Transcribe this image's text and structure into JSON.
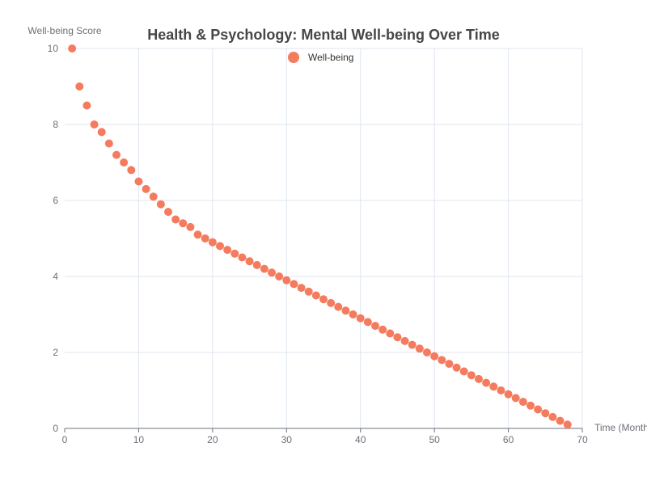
{
  "chart_data": {
    "type": "scatter",
    "title": "Health & Psychology: Mental Well-being Over Time",
    "xlabel": "Time (Months)",
    "ylabel": "Well-being Score",
    "xlim": [
      0,
      70
    ],
    "ylim": [
      0,
      10
    ],
    "x_ticks": [
      "0",
      "10",
      "20",
      "30",
      "40",
      "50",
      "60",
      "70"
    ],
    "y_ticks": [
      "0",
      "2",
      "4",
      "6",
      "8",
      "10"
    ],
    "grid": true,
    "legend_position": "top-center",
    "series": [
      {
        "name": "Well-being",
        "color": "#f47b5e",
        "x": [
          1,
          2,
          3,
          4,
          5,
          6,
          7,
          8,
          9,
          10,
          11,
          12,
          13,
          14,
          15,
          16,
          17,
          18,
          19,
          20,
          21,
          22,
          23,
          24,
          25,
          26,
          27,
          28,
          29,
          30,
          31,
          32,
          33,
          34,
          35,
          36,
          37,
          38,
          39,
          40,
          41,
          42,
          43,
          44,
          45,
          46,
          47,
          48,
          49,
          50,
          51,
          52,
          53,
          54,
          55,
          56,
          57,
          58,
          59,
          60,
          61,
          62,
          63,
          64,
          65,
          66,
          67,
          68
        ],
        "y": [
          10,
          9,
          8.5,
          8,
          7.8,
          7.5,
          7.2,
          7,
          6.8,
          6.5,
          6.3,
          6.1,
          5.9,
          5.7,
          5.5,
          5.4,
          5.3,
          5.1,
          5,
          4.9,
          4.8,
          4.7,
          4.6,
          4.5,
          4.4,
          4.3,
          4.2,
          4.1,
          4,
          3.9,
          3.8,
          3.7,
          3.6,
          3.5,
          3.4,
          3.3,
          3.2,
          3.1,
          3,
          2.9,
          2.8,
          2.7,
          2.6,
          2.5,
          2.4,
          2.3,
          2.2,
          2.1,
          2,
          1.9,
          1.8,
          1.7,
          1.6,
          1.5,
          1.4,
          1.3,
          1.2,
          1.1,
          1,
          0.9,
          0.8,
          0.7,
          0.6,
          0.5,
          0.4,
          0.3,
          0.2,
          0.1
        ]
      }
    ]
  }
}
